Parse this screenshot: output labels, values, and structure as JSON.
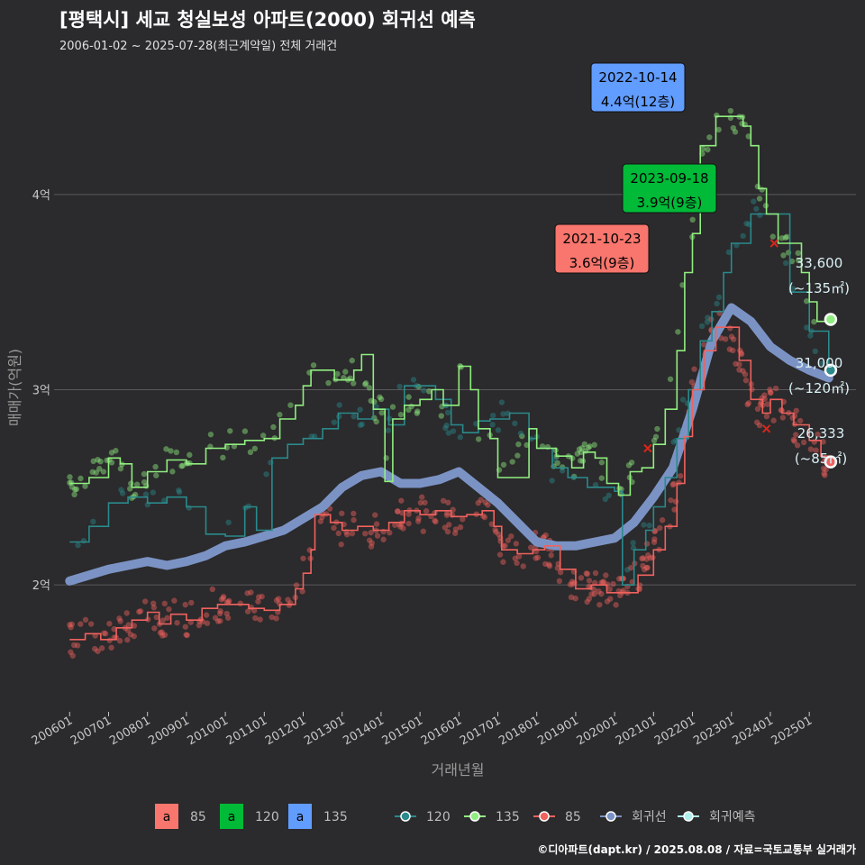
{
  "title": "[평택시] 세교 청실보성 아파트(2000) 회귀선 예측",
  "subtitle": "2006-01-02 ~ 2025-07-28(최근계약일) 전체 거래건",
  "caption": "©디아파트(dapt.kr) / 2025.08.08 / 자료=국토교통부 실거래가",
  "colors": {
    "s85": "#f8766d",
    "s120": "#00ba38",
    "s135": "#619cff",
    "line120": "#2a8a8c",
    "line135": "#90ee80",
    "line85": "#f0625e",
    "regression": "#7b93c4",
    "forecast": "#aef0ee"
  },
  "chart_data": {
    "type": "line",
    "xlabel": "거래년월",
    "ylabel": "매매가(억원)",
    "x_ticks": [
      "200601",
      "200701",
      "200801",
      "200901",
      "201001",
      "201101",
      "201201",
      "201301",
      "201401",
      "201501",
      "201601",
      "201701",
      "201801",
      "201901",
      "202001",
      "202101",
      "202201",
      "202301",
      "202401",
      "202501"
    ],
    "y_ticks": [
      "2억",
      "3억",
      "4억"
    ],
    "ylim": [
      1.35,
      4.65
    ],
    "grid": true,
    "series": [
      {
        "name": "135",
        "color": "#90ee80",
        "points": [
          [
            2006.0,
            2.52
          ],
          [
            2006.5,
            2.55
          ],
          [
            2007.0,
            2.65
          ],
          [
            2007.3,
            2.62
          ],
          [
            2007.6,
            2.5
          ],
          [
            2008.0,
            2.58
          ],
          [
            2008.5,
            2.64
          ],
          [
            2009.0,
            2.62
          ],
          [
            2009.5,
            2.7
          ],
          [
            2010.0,
            2.72
          ],
          [
            2010.5,
            2.74
          ],
          [
            2011.0,
            2.75
          ],
          [
            2011.4,
            2.85
          ],
          [
            2011.8,
            2.92
          ],
          [
            2012.0,
            3.02
          ],
          [
            2012.2,
            3.1
          ],
          [
            2012.5,
            3.1
          ],
          [
            2012.8,
            3.05
          ],
          [
            2013.0,
            3.05
          ],
          [
            2013.3,
            3.1
          ],
          [
            2013.5,
            3.18
          ],
          [
            2013.8,
            2.9
          ],
          [
            2014.0,
            2.9
          ],
          [
            2014.1,
            2.53
          ],
          [
            2014.3,
            2.85
          ],
          [
            2014.6,
            2.92
          ],
          [
            2015.0,
            2.95
          ],
          [
            2015.3,
            3.0
          ],
          [
            2015.6,
            2.92
          ],
          [
            2016.0,
            3.12
          ],
          [
            2016.3,
            3.0
          ],
          [
            2016.5,
            2.8
          ],
          [
            2016.8,
            2.75
          ],
          [
            2017.0,
            2.55
          ],
          [
            2017.8,
            2.8
          ],
          [
            2018.0,
            2.7
          ],
          [
            2018.5,
            2.66
          ],
          [
            2018.9,
            2.6
          ],
          [
            2019.2,
            2.68
          ],
          [
            2019.5,
            2.65
          ],
          [
            2019.8,
            2.52
          ],
          [
            2020.1,
            2.46
          ],
          [
            2020.4,
            2.58
          ],
          [
            2020.7,
            2.6
          ],
          [
            2021.0,
            2.72
          ],
          [
            2021.3,
            2.9
          ],
          [
            2021.6,
            3.2
          ],
          [
            2021.8,
            3.6
          ],
          [
            2022.0,
            3.8
          ],
          [
            2022.2,
            4.25
          ],
          [
            2022.4,
            4.25
          ],
          [
            2022.6,
            4.4
          ],
          [
            2022.8,
            4.4
          ],
          [
            2023.0,
            4.4
          ],
          [
            2023.3,
            4.35
          ],
          [
            2023.5,
            4.25
          ],
          [
            2023.7,
            4.03
          ],
          [
            2023.9,
            3.9
          ],
          [
            2024.0,
            3.9
          ],
          [
            2024.2,
            3.75
          ],
          [
            2024.5,
            3.75
          ],
          [
            2024.8,
            3.6
          ],
          [
            2025.0,
            3.45
          ],
          [
            2025.2,
            3.35
          ],
          [
            2025.5,
            3.36
          ]
        ]
      },
      {
        "name": "120",
        "color": "#2a8a8c",
        "points": [
          [
            2006.0,
            2.22
          ],
          [
            2006.5,
            2.3
          ],
          [
            2007.0,
            2.42
          ],
          [
            2007.5,
            2.45
          ],
          [
            2008.0,
            2.42
          ],
          [
            2008.5,
            2.45
          ],
          [
            2009.0,
            2.4
          ],
          [
            2009.5,
            2.26
          ],
          [
            2010.0,
            2.25
          ],
          [
            2010.5,
            2.4
          ],
          [
            2010.8,
            2.28
          ],
          [
            2011.2,
            2.65
          ],
          [
            2011.6,
            2.72
          ],
          [
            2012.0,
            2.75
          ],
          [
            2012.5,
            2.8
          ],
          [
            2012.9,
            2.88
          ],
          [
            2013.4,
            2.85
          ],
          [
            2013.8,
            2.9
          ],
          [
            2014.0,
            2.9
          ],
          [
            2014.2,
            2.82
          ],
          [
            2014.6,
            3.02
          ],
          [
            2015.0,
            3.02
          ],
          [
            2015.4,
            2.95
          ],
          [
            2015.8,
            2.82
          ],
          [
            2016.1,
            2.78
          ],
          [
            2016.5,
            2.84
          ],
          [
            2016.8,
            2.85
          ],
          [
            2017.3,
            2.88
          ],
          [
            2017.8,
            2.75
          ],
          [
            2018.0,
            2.7
          ],
          [
            2018.4,
            2.6
          ],
          [
            2018.8,
            2.55
          ],
          [
            2019.3,
            2.5
          ],
          [
            2019.7,
            2.5
          ],
          [
            2020.0,
            2.48
          ],
          [
            2020.2,
            2.0
          ],
          [
            2020.5,
            2.18
          ],
          [
            2020.8,
            2.28
          ],
          [
            2021.0,
            2.4
          ],
          [
            2021.3,
            2.55
          ],
          [
            2021.6,
            2.75
          ],
          [
            2021.9,
            3.0
          ],
          [
            2022.2,
            3.25
          ],
          [
            2022.5,
            3.4
          ],
          [
            2022.8,
            3.6
          ],
          [
            2023.0,
            3.75
          ],
          [
            2023.5,
            3.9
          ],
          [
            2024.0,
            3.9
          ],
          [
            2024.5,
            3.5
          ],
          [
            2025.0,
            3.3
          ],
          [
            2025.5,
            3.1
          ]
        ]
      },
      {
        "name": "85",
        "color": "#f0625e",
        "points": [
          [
            2006.0,
            1.72
          ],
          [
            2006.4,
            1.75
          ],
          [
            2006.8,
            1.72
          ],
          [
            2007.2,
            1.78
          ],
          [
            2007.6,
            1.82
          ],
          [
            2008.0,
            1.86
          ],
          [
            2008.3,
            1.8
          ],
          [
            2008.6,
            1.85
          ],
          [
            2009.0,
            1.82
          ],
          [
            2009.4,
            1.88
          ],
          [
            2009.8,
            1.9
          ],
          [
            2010.2,
            1.9
          ],
          [
            2010.6,
            1.88
          ],
          [
            2011.0,
            1.87
          ],
          [
            2011.4,
            1.9
          ],
          [
            2011.8,
            1.98
          ],
          [
            2012.0,
            2.06
          ],
          [
            2012.2,
            2.18
          ],
          [
            2012.3,
            2.36
          ],
          [
            2012.7,
            2.32
          ],
          [
            2013.0,
            2.28
          ],
          [
            2013.4,
            2.3
          ],
          [
            2013.8,
            2.28
          ],
          [
            2014.2,
            2.32
          ],
          [
            2014.6,
            2.38
          ],
          [
            2015.0,
            2.36
          ],
          [
            2015.4,
            2.38
          ],
          [
            2015.8,
            2.35
          ],
          [
            2016.2,
            2.36
          ],
          [
            2016.6,
            2.38
          ],
          [
            2016.9,
            2.3
          ],
          [
            2017.1,
            2.18
          ],
          [
            2017.5,
            2.16
          ],
          [
            2017.9,
            2.18
          ],
          [
            2018.2,
            2.2
          ],
          [
            2018.6,
            2.08
          ],
          [
            2019.0,
            1.98
          ],
          [
            2019.4,
            2.0
          ],
          [
            2019.8,
            1.96
          ],
          [
            2020.2,
            1.96
          ],
          [
            2020.6,
            2.05
          ],
          [
            2021.0,
            2.18
          ],
          [
            2021.3,
            2.3
          ],
          [
            2021.6,
            2.52
          ],
          [
            2021.8,
            2.76
          ],
          [
            2022.0,
            3.0
          ],
          [
            2022.3,
            3.2
          ],
          [
            2022.6,
            3.32
          ],
          [
            2022.9,
            3.32
          ],
          [
            2023.2,
            3.15
          ],
          [
            2023.5,
            2.95
          ],
          [
            2023.8,
            2.88
          ],
          [
            2024.0,
            2.95
          ],
          [
            2024.3,
            2.88
          ],
          [
            2024.6,
            2.82
          ],
          [
            2025.0,
            2.74
          ],
          [
            2025.3,
            2.66
          ],
          [
            2025.5,
            2.63
          ]
        ]
      },
      {
        "name": "회귀선",
        "color": "#7b93c4",
        "points": [
          [
            2006.0,
            2.02
          ],
          [
            2006.5,
            2.05
          ],
          [
            2007.0,
            2.08
          ],
          [
            2007.5,
            2.1
          ],
          [
            2008.0,
            2.12
          ],
          [
            2008.5,
            2.1
          ],
          [
            2009.0,
            2.12
          ],
          [
            2009.5,
            2.15
          ],
          [
            2010.0,
            2.2
          ],
          [
            2010.5,
            2.22
          ],
          [
            2011.0,
            2.25
          ],
          [
            2011.5,
            2.28
          ],
          [
            2012.0,
            2.34
          ],
          [
            2012.5,
            2.4
          ],
          [
            2013.0,
            2.5
          ],
          [
            2013.5,
            2.56
          ],
          [
            2014.0,
            2.58
          ],
          [
            2014.5,
            2.52
          ],
          [
            2015.0,
            2.52
          ],
          [
            2015.5,
            2.54
          ],
          [
            2016.0,
            2.58
          ],
          [
            2016.5,
            2.5
          ],
          [
            2017.0,
            2.42
          ],
          [
            2017.5,
            2.32
          ],
          [
            2018.0,
            2.22
          ],
          [
            2018.5,
            2.2
          ],
          [
            2019.0,
            2.2
          ],
          [
            2019.5,
            2.22
          ],
          [
            2020.0,
            2.24
          ],
          [
            2020.5,
            2.32
          ],
          [
            2021.0,
            2.45
          ],
          [
            2021.5,
            2.6
          ],
          [
            2022.0,
            2.9
          ],
          [
            2022.5,
            3.25
          ],
          [
            2023.0,
            3.42
          ],
          [
            2023.5,
            3.35
          ],
          [
            2024.0,
            3.22
          ],
          [
            2024.5,
            3.15
          ],
          [
            2025.0,
            3.1
          ],
          [
            2025.5,
            3.06
          ]
        ]
      }
    ],
    "forecast": [
      {
        "label": "33,600",
        "area": "(~135㎡)",
        "x": 2025.55,
        "y": 3.36,
        "color": "#90ee80"
      },
      {
        "label": "31,000",
        "area": "(~120㎡)",
        "x": 2025.55,
        "y": 3.1,
        "color": "#2a8a8c"
      },
      {
        "label": "26,333",
        "area": "(~85㎡)",
        "x": 2025.55,
        "y": 2.63,
        "color": "#f0625e"
      }
    ],
    "annotations": [
      {
        "date": "2022-10-14",
        "price": "4.4억(12층)",
        "x": 2022.79,
        "y": 4.4,
        "color": "#619cff"
      },
      {
        "date": "2023-09-18",
        "price": "3.9억(9층)",
        "x": 2023.71,
        "y": 3.9,
        "color": "#00ba38"
      },
      {
        "date": "2021-10-23",
        "price": "3.6억(9층)",
        "x": 2021.81,
        "y": 3.6,
        "color": "#f8766d"
      }
    ],
    "cancelled": [
      {
        "x": 2020.85,
        "y": 2.7
      },
      {
        "x": 2023.9,
        "y": 2.8
      },
      {
        "x": 2024.1,
        "y": 3.75
      }
    ]
  },
  "legend": {
    "boxes": [
      {
        "letter": "a",
        "label": "85",
        "color": "#f8766d"
      },
      {
        "letter": "a",
        "label": "120",
        "color": "#00ba38"
      },
      {
        "letter": "a",
        "label": "135",
        "color": "#619cff"
      }
    ],
    "lines": [
      {
        "label": "120",
        "color": "#2a8a8c"
      },
      {
        "label": "135",
        "color": "#90ee80"
      },
      {
        "label": "85",
        "color": "#f0625e"
      },
      {
        "label": "회귀선",
        "color": "#7b93c4"
      },
      {
        "label": "회귀예측",
        "color": "#aef0ee"
      }
    ]
  }
}
